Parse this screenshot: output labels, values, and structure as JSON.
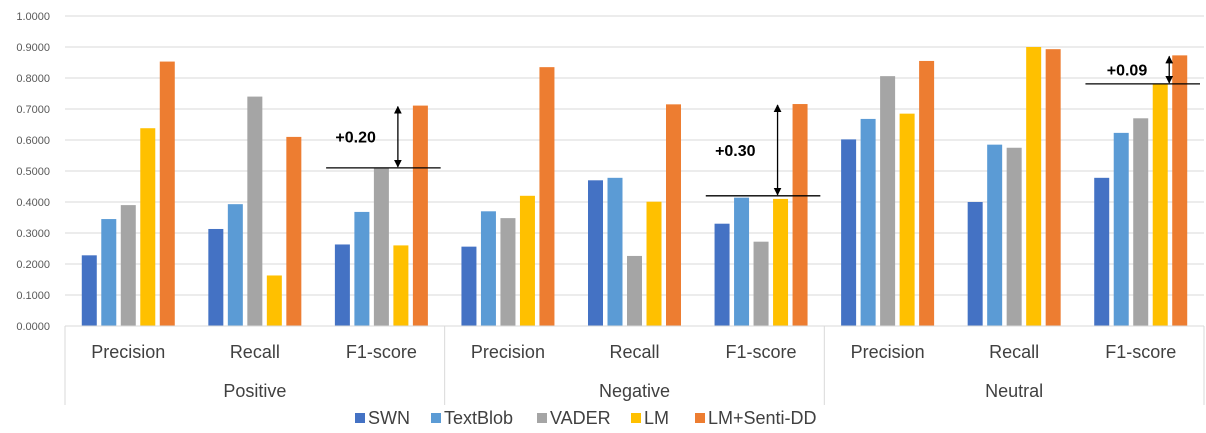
{
  "chart_data": {
    "type": "bar",
    "title": "",
    "xlabel": "",
    "ylabel": "",
    "ylim": [
      0,
      1.0
    ],
    "ytick_step": 0.1,
    "ytick_labels": [
      "0.0000",
      "0.1000",
      "0.2000",
      "0.3000",
      "0.4000",
      "0.5000",
      "0.6000",
      "0.7000",
      "0.8000",
      "0.9000",
      "1.0000"
    ],
    "grid": true,
    "legend_position": "bottom",
    "categories": [
      "Precision",
      "Recall",
      "F1-score",
      "Precision",
      "Recall",
      "F1-score",
      "Precision",
      "Recall",
      "F1-score"
    ],
    "groups": [
      {
        "label": "Positive",
        "span": 3
      },
      {
        "label": "Negative",
        "span": 3
      },
      {
        "label": "Neutral",
        "span": 3
      }
    ],
    "series": [
      {
        "name": "SWN",
        "color": "#4472C4",
        "values": [
          0.228,
          0.313,
          0.263,
          0.256,
          0.47,
          0.33,
          0.602,
          0.4,
          0.478
        ]
      },
      {
        "name": "TextBlob",
        "color": "#5B9BD5",
        "values": [
          0.345,
          0.393,
          0.368,
          0.37,
          0.478,
          0.414,
          0.668,
          0.585,
          0.623
        ]
      },
      {
        "name": "VADER",
        "color": "#A5A5A5",
        "values": [
          0.39,
          0.74,
          0.51,
          0.348,
          0.226,
          0.272,
          0.806,
          0.575,
          0.67
        ]
      },
      {
        "name": "LM",
        "color": "#FFC000",
        "values": [
          0.638,
          0.163,
          0.26,
          0.42,
          0.401,
          0.41,
          0.685,
          0.9,
          0.781
        ]
      },
      {
        "name": "LM+Senti-DD",
        "color": "#ED7D31",
        "values": [
          0.853,
          0.61,
          0.711,
          0.835,
          0.715,
          0.716,
          0.855,
          0.893,
          0.873
        ]
      }
    ],
    "annotations": [
      {
        "text": "+0.20",
        "category_index": 2,
        "from": 0.51,
        "to": 0.711
      },
      {
        "text": "+0.30",
        "category_index": 5,
        "from": 0.42,
        "to": 0.716
      },
      {
        "text": "+0.09",
        "category_index": 8,
        "from": 0.781,
        "to": 0.873
      }
    ]
  }
}
